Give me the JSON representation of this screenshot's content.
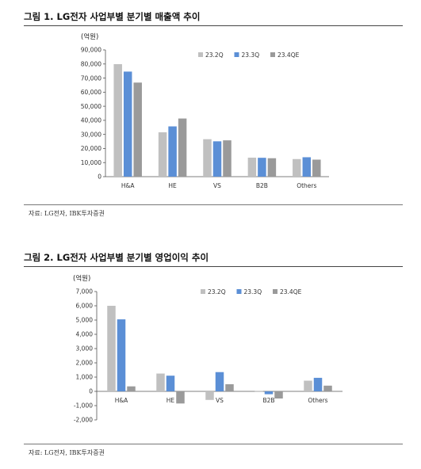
{
  "figures": [
    {
      "title": "그림 1. LG전자 사업부별 분기별 매출액 추이",
      "source": "자료: LG전자, IBK투자증권"
    },
    {
      "title": "그림 2. LG전자 사업부별 분기별 영업이익 추이",
      "source": "자료: LG전자, IBK투자증권"
    }
  ],
  "colors": {
    "s1": "#c0c0c0",
    "s2": "#5b8fd6",
    "s3": "#9a9a9a"
  },
  "chart_data": [
    {
      "type": "bar",
      "unit_label": "(억원)",
      "categories": [
        "H&A",
        "HE",
        "VS",
        "B2B",
        "Others"
      ],
      "series": [
        {
          "name": "23.2Q",
          "values": [
            79900,
            31500,
            26600,
            13500,
            12500
          ]
        },
        {
          "name": "23.3Q",
          "values": [
            74600,
            35700,
            25100,
            13400,
            13800
          ]
        },
        {
          "name": "23.4QE",
          "values": [
            66800,
            41300,
            25800,
            13100,
            12100
          ]
        }
      ],
      "ylim": [
        0,
        90000
      ],
      "yticks": [
        0,
        10000,
        20000,
        30000,
        40000,
        50000,
        60000,
        70000,
        80000,
        90000
      ],
      "ytick_labels": [
        "0",
        "10,000",
        "20,000",
        "30,000",
        "40,000",
        "50,000",
        "60,000",
        "70,000",
        "80,000",
        "90,000"
      ],
      "legend": "top-right",
      "grid": false
    },
    {
      "type": "bar",
      "unit_label": "(억원)",
      "categories": [
        "H&A",
        "HE",
        "VS",
        "B2B",
        "Others"
      ],
      "series": [
        {
          "name": "23.2Q",
          "values": [
            6000,
            1250,
            -600,
            20,
            750
          ]
        },
        {
          "name": "23.3Q",
          "values": [
            5050,
            1100,
            1350,
            -200,
            950
          ]
        },
        {
          "name": "23.4QE",
          "values": [
            350,
            -850,
            500,
            -500,
            400
          ]
        }
      ],
      "ylim": [
        -2000,
        7000
      ],
      "yticks": [
        -2000,
        -1000,
        0,
        1000,
        2000,
        3000,
        4000,
        5000,
        6000,
        7000
      ],
      "ytick_labels": [
        "-2,000",
        "-1,000",
        "0",
        "1,000",
        "2,000",
        "3,000",
        "4,000",
        "5,000",
        "6,000",
        "7,000"
      ],
      "legend": "top-right",
      "grid": false
    }
  ]
}
